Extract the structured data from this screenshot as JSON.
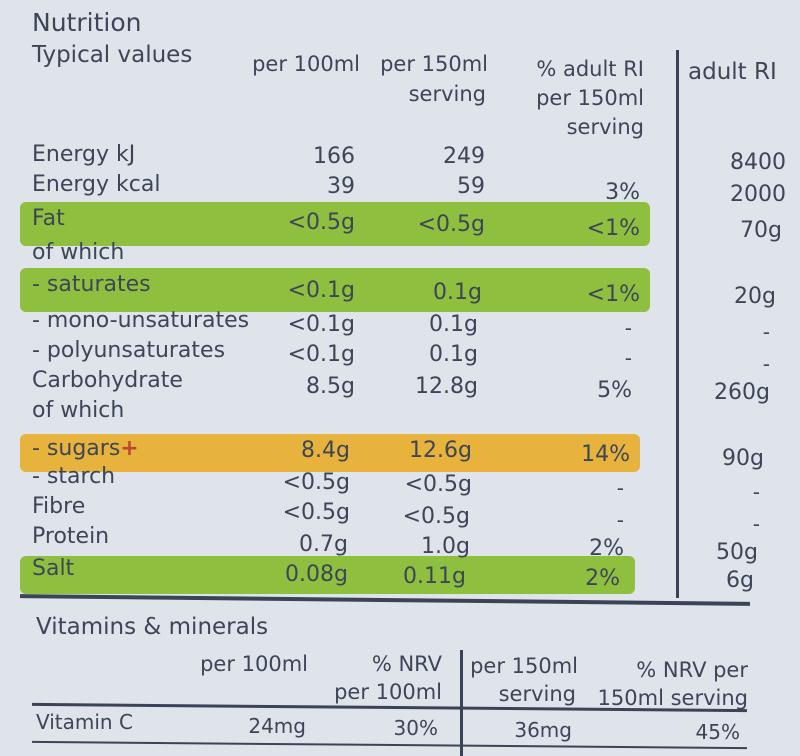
{
  "nutrition": {
    "title": "Nutrition",
    "header": {
      "typical": "Typical values",
      "per100": "per 100ml",
      "per150_1": "per 150ml",
      "per150_2": "serving",
      "pct_1": "% adult RI",
      "pct_2": "per 150ml",
      "pct_3": "serving",
      "adult_ri": "adult RI"
    },
    "rows": [
      {
        "label": "Energy kJ",
        "per100": "166",
        "per150": "249",
        "pct": "",
        "ri": "8400"
      },
      {
        "label": "Energy kcal",
        "per100": "39",
        "per150": "59",
        "pct": "3%",
        "ri": "2000"
      },
      {
        "label": "Fat",
        "per100": "<0.5g",
        "per150": "<0.5g",
        "pct": "<1%",
        "ri": "70g"
      },
      {
        "label": "of which"
      },
      {
        "label": "- saturates",
        "per100": "<0.1g",
        "per150": "0.1g",
        "pct": "<1%",
        "ri": "20g"
      },
      {
        "label": "- mono-unsaturates",
        "per100": "<0.1g",
        "per150": "0.1g",
        "pct": "-",
        "ri": "-"
      },
      {
        "label": "- polyunsaturates",
        "per100": "<0.1g",
        "per150": "0.1g",
        "pct": "-",
        "ri": "-"
      },
      {
        "label": "Carbohydrate",
        "per100": "8.5g",
        "per150": "12.8g",
        "pct": "5%",
        "ri": "260g"
      },
      {
        "label": "of which"
      },
      {
        "label": "- sugars",
        "marker": "+",
        "per100": "8.4g",
        "per150": "12.6g",
        "pct": "14%",
        "ri": "90g"
      },
      {
        "label": "- starch",
        "per100": "<0.5g",
        "per150": "<0.5g",
        "pct": "-",
        "ri": "-"
      },
      {
        "label": "Fibre",
        "per100": "<0.5g",
        "per150": "<0.5g",
        "pct": "-",
        "ri": "-"
      },
      {
        "label": "Protein",
        "per100": "0.7g",
        "per150": "1.0g",
        "pct": "2%",
        "ri": "50g"
      },
      {
        "label": "Salt",
        "per100": "0.08g",
        "per150": "0.11g",
        "pct": "2%",
        "ri": "6g"
      }
    ]
  },
  "vitamins": {
    "title": "Vitamins & minerals",
    "header": {
      "per100": "per 100ml",
      "nrv100_1": "% NRV",
      "nrv100_2": "per 100ml",
      "per150_1": "per 150ml",
      "per150_2": "serving",
      "nrv150_1": "% NRV per",
      "nrv150_2": "150ml serving"
    },
    "row": {
      "label": "Vitamin C",
      "per100": "24mg",
      "nrv100": "30%",
      "per150": "36mg",
      "nrv150": "45%"
    }
  },
  "colors": {
    "green_band": "#8fbf3f",
    "amber_band": "#e8b33c",
    "text": "#3d4658",
    "background": "#dfe3ea"
  }
}
